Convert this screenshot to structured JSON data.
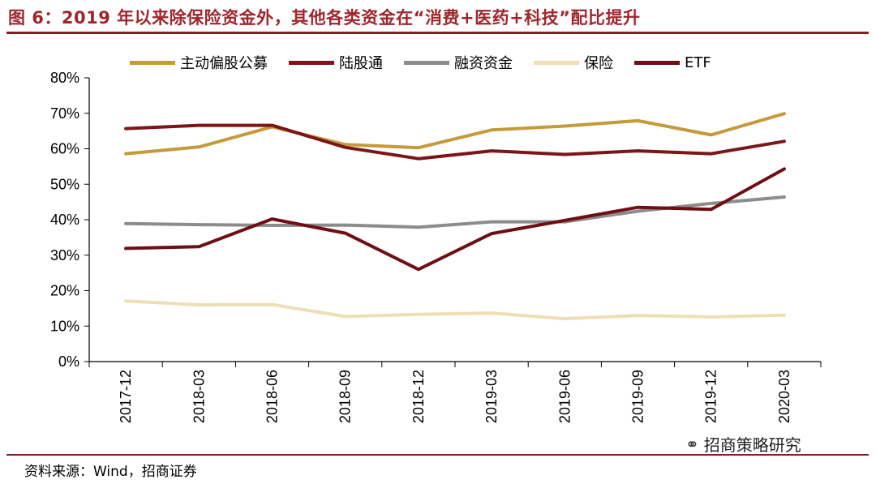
{
  "title": "图 6：2019 年以来除保险资金外，其他各类资金在“消费+医药+科技”配比提升",
  "source": "资料来源：Wind，招商证券",
  "watermark": "招商策略研究",
  "watermark_icon": "wechat-icon",
  "colors": {
    "title": "#a0262d",
    "rule": "#8b1d22"
  },
  "chart_data": {
    "type": "line",
    "categories": [
      "2017-12",
      "2018-03",
      "2018-06",
      "2018-09",
      "2018-12",
      "2019-03",
      "2019-06",
      "2019-09",
      "2019-12",
      "2020-03"
    ],
    "ylim": [
      0,
      80
    ],
    "yticks": [
      0,
      10,
      20,
      30,
      40,
      50,
      60,
      70,
      80
    ],
    "ytick_labels": [
      "0%",
      "10%",
      "20%",
      "30%",
      "40%",
      "50%",
      "60%",
      "70%",
      "80%"
    ],
    "grid": false,
    "legend_position": "top",
    "series": [
      {
        "name": "主动偏股公募",
        "color": "#c49a3c",
        "values": [
          58.6,
          60.5,
          66.2,
          61.2,
          60.3,
          65.3,
          66.4,
          67.9,
          63.9,
          69.9
        ]
      },
      {
        "name": "陆股通",
        "color": "#7b1518",
        "values": [
          65.7,
          66.6,
          66.6,
          60.4,
          57.2,
          59.4,
          58.4,
          59.4,
          58.6,
          62.1
        ]
      },
      {
        "name": "融资资金",
        "color": "#8c8c8c",
        "values": [
          38.9,
          38.6,
          38.4,
          38.5,
          37.9,
          39.4,
          39.4,
          42.4,
          44.6,
          46.4
        ]
      },
      {
        "name": "保险",
        "color": "#efdeb5",
        "values": [
          17.1,
          16.0,
          16.1,
          12.7,
          13.3,
          13.7,
          12.1,
          13.0,
          12.6,
          13.1
        ]
      },
      {
        "name": "ETF",
        "color": "#6e0f14",
        "values": [
          31.9,
          32.4,
          40.2,
          36.2,
          26.0,
          36.1,
          39.8,
          43.5,
          42.9,
          54.3
        ]
      }
    ]
  }
}
